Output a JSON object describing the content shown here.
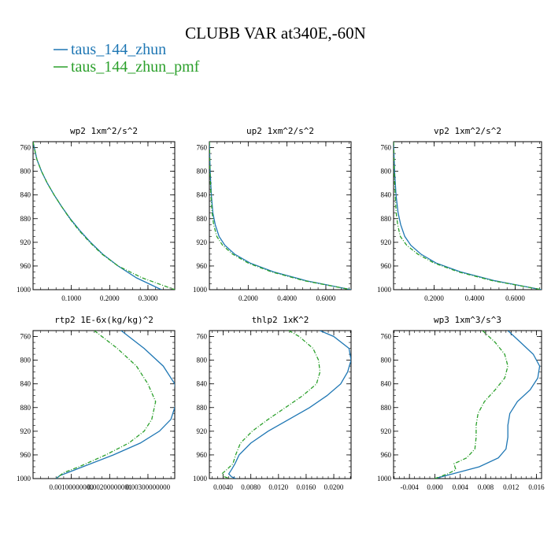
{
  "figure": {
    "title": "CLUBB VAR at340E,-60N",
    "legend": [
      {
        "label": "taus_144_zhun",
        "color": "#1f77b4",
        "dash": false
      },
      {
        "label": "taus_144_zhun_pmf",
        "color": "#2ca02c",
        "dash": true
      }
    ]
  },
  "chart_data": [
    {
      "type": "line",
      "title": "wp2  1xm^2/s^2",
      "xlim": [
        0,
        0.37
      ],
      "ylim": [
        750,
        1000
      ],
      "y_inverted": true,
      "xticks": [
        0.1,
        0.2,
        0.3
      ],
      "xtick_labels": [
        "0.1000",
        "0.2000",
        "0.3000"
      ],
      "yticks": [
        760,
        800,
        840,
        880,
        920,
        960,
        1000
      ],
      "series": [
        {
          "name": "taus_144_zhun",
          "y": [
            750,
            760,
            780,
            800,
            820,
            840,
            860,
            880,
            900,
            920,
            940,
            960,
            980,
            1000
          ],
          "x": [
            0.0,
            0.003,
            0.01,
            0.022,
            0.037,
            0.055,
            0.075,
            0.097,
            0.122,
            0.15,
            0.182,
            0.222,
            0.27,
            0.335
          ]
        },
        {
          "name": "taus_144_zhun_pmf",
          "y": [
            750,
            760,
            780,
            800,
            820,
            840,
            860,
            880,
            900,
            920,
            940,
            960,
            980,
            1000
          ],
          "x": [
            0.0,
            0.003,
            0.01,
            0.022,
            0.037,
            0.055,
            0.075,
            0.096,
            0.12,
            0.148,
            0.18,
            0.222,
            0.285,
            0.37
          ]
        }
      ]
    },
    {
      "type": "line",
      "title": "up2  1xm^2/s^2",
      "xlim": [
        0,
        0.73
      ],
      "ylim": [
        750,
        1000
      ],
      "y_inverted": true,
      "xticks": [
        0.2,
        0.4,
        0.6
      ],
      "xtick_labels": [
        "0.2000",
        "0.4000",
        "0.6000"
      ],
      "yticks": [
        760,
        800,
        840,
        880,
        920,
        960,
        1000
      ],
      "series": [
        {
          "name": "taus_144_zhun",
          "y": [
            750,
            800,
            840,
            870,
            890,
            910,
            925,
            940,
            955,
            970,
            985,
            1000
          ],
          "x": [
            0.0,
            0.004,
            0.01,
            0.018,
            0.03,
            0.05,
            0.08,
            0.13,
            0.21,
            0.33,
            0.5,
            0.73
          ]
        },
        {
          "name": "taus_144_zhun_pmf",
          "y": [
            750,
            800,
            840,
            870,
            890,
            910,
            925,
            940,
            955,
            970,
            985,
            1000
          ],
          "x": [
            0.0,
            0.003,
            0.008,
            0.014,
            0.022,
            0.038,
            0.068,
            0.12,
            0.2,
            0.32,
            0.49,
            0.73
          ]
        }
      ]
    },
    {
      "type": "line",
      "title": "vp2  1xm^2/s^2",
      "xlim": [
        0,
        0.73
      ],
      "ylim": [
        750,
        1000
      ],
      "y_inverted": true,
      "xticks": [
        0.2,
        0.4,
        0.6
      ],
      "xtick_labels": [
        "0.2000",
        "0.4000",
        "0.6000"
      ],
      "yticks": [
        760,
        800,
        840,
        880,
        920,
        960,
        1000
      ],
      "series": [
        {
          "name": "taus_144_zhun",
          "y": [
            750,
            800,
            840,
            870,
            890,
            910,
            925,
            940,
            955,
            970,
            985,
            1000
          ],
          "x": [
            0.0,
            0.005,
            0.012,
            0.022,
            0.035,
            0.055,
            0.085,
            0.135,
            0.21,
            0.33,
            0.5,
            0.73
          ]
        },
        {
          "name": "taus_144_zhun_pmf",
          "y": [
            750,
            800,
            840,
            870,
            890,
            910,
            925,
            940,
            955,
            970,
            985,
            1000
          ],
          "x": [
            0.0,
            0.003,
            0.008,
            0.013,
            0.02,
            0.033,
            0.065,
            0.12,
            0.2,
            0.32,
            0.49,
            0.73
          ]
        }
      ]
    },
    {
      "type": "line",
      "title": "rtp2  1E-6x(kg/kg)^2",
      "xlim": [
        0,
        0.0037
      ],
      "ylim": [
        750,
        1000
      ],
      "y_inverted": true,
      "xticks": [
        0.001,
        0.002,
        0.003
      ],
      "xtick_labels": [
        "0.00100000000",
        "0.00200000001",
        "0.00300000000"
      ],
      "yticks": [
        760,
        800,
        840,
        880,
        920,
        960,
        1000
      ],
      "series": [
        {
          "name": "taus_144_zhun",
          "y": [
            750,
            780,
            810,
            840,
            870,
            900,
            920,
            940,
            960,
            980,
            990,
            995,
            1000
          ],
          "x": [
            0.0023,
            0.0029,
            0.0034,
            0.0037,
            0.00375,
            0.0036,
            0.0033,
            0.0028,
            0.0021,
            0.0013,
            0.0009,
            0.0007,
            0.0006
          ]
        },
        {
          "name": "taus_144_zhun_pmf",
          "y": [
            750,
            780,
            810,
            840,
            870,
            900,
            920,
            940,
            960,
            980,
            990,
            995,
            1000
          ],
          "x": [
            0.0016,
            0.0022,
            0.0027,
            0.003,
            0.0032,
            0.0031,
            0.0029,
            0.0025,
            0.0019,
            0.0012,
            0.0008,
            0.0007,
            0.0006
          ]
        }
      ]
    },
    {
      "type": "line",
      "title": "thlp2  1xK^2",
      "xlim": [
        0.002,
        0.0225
      ],
      "ylim": [
        750,
        1000
      ],
      "y_inverted": true,
      "xticks": [
        0.004,
        0.008,
        0.012,
        0.016,
        0.02
      ],
      "xtick_labels": [
        "0.0040",
        "0.0080",
        "0.0120",
        "0.0160",
        "0.0200"
      ],
      "yticks": [
        760,
        800,
        840,
        880,
        920,
        960,
        1000
      ],
      "series": [
        {
          "name": "taus_144_zhun",
          "y": [
            750,
            760,
            780,
            800,
            820,
            840,
            860,
            880,
            900,
            920,
            940,
            960,
            975,
            985,
            992,
            997,
            1000
          ],
          "x": [
            0.018,
            0.02,
            0.0222,
            0.0225,
            0.022,
            0.021,
            0.019,
            0.0165,
            0.0135,
            0.0105,
            0.008,
            0.0063,
            0.0057,
            0.0052,
            0.0048,
            0.0052,
            0.0058
          ]
        },
        {
          "name": "taus_144_zhun_pmf",
          "y": [
            750,
            760,
            780,
            800,
            820,
            840,
            860,
            880,
            900,
            920,
            940,
            960,
            975,
            985,
            992,
            997,
            1000
          ],
          "x": [
            0.0135,
            0.015,
            0.017,
            0.0178,
            0.018,
            0.0175,
            0.0155,
            0.013,
            0.0105,
            0.0082,
            0.0065,
            0.0058,
            0.0054,
            0.0045,
            0.0038,
            0.0042,
            0.005
          ]
        }
      ]
    },
    {
      "type": "line",
      "title": "wp3  1xm^3/s^3",
      "xlim": [
        -0.0065,
        0.0168
      ],
      "ylim": [
        750,
        1000
      ],
      "y_inverted": true,
      "xticks": [
        -0.004,
        0.0,
        0.004,
        0.008,
        0.012,
        0.016
      ],
      "xtick_labels": [
        "-0.004",
        "0.000",
        "0.004",
        "0.008",
        "0.012",
        "0.016"
      ],
      "yticks": [
        760,
        800,
        840,
        880,
        920,
        960,
        1000
      ],
      "series": [
        {
          "name": "taus_144_zhun",
          "y": [
            750,
            770,
            790,
            810,
            830,
            850,
            870,
            890,
            910,
            930,
            950,
            965,
            980,
            990,
            1000
          ],
          "x": [
            0.0115,
            0.0135,
            0.0155,
            0.0165,
            0.0162,
            0.015,
            0.013,
            0.0118,
            0.0115,
            0.0115,
            0.0112,
            0.01,
            0.007,
            0.0035,
            0.0
          ]
        },
        {
          "name": "taus_144_zhun_pmf",
          "y": [
            750,
            770,
            790,
            810,
            830,
            850,
            870,
            890,
            910,
            930,
            950,
            965,
            975,
            985,
            992,
            1000
          ],
          "x": [
            0.0075,
            0.0095,
            0.011,
            0.0115,
            0.011,
            0.0095,
            0.0078,
            0.0068,
            0.0065,
            0.0065,
            0.0063,
            0.005,
            0.003,
            0.0033,
            0.002,
            0.0
          ]
        }
      ]
    }
  ]
}
